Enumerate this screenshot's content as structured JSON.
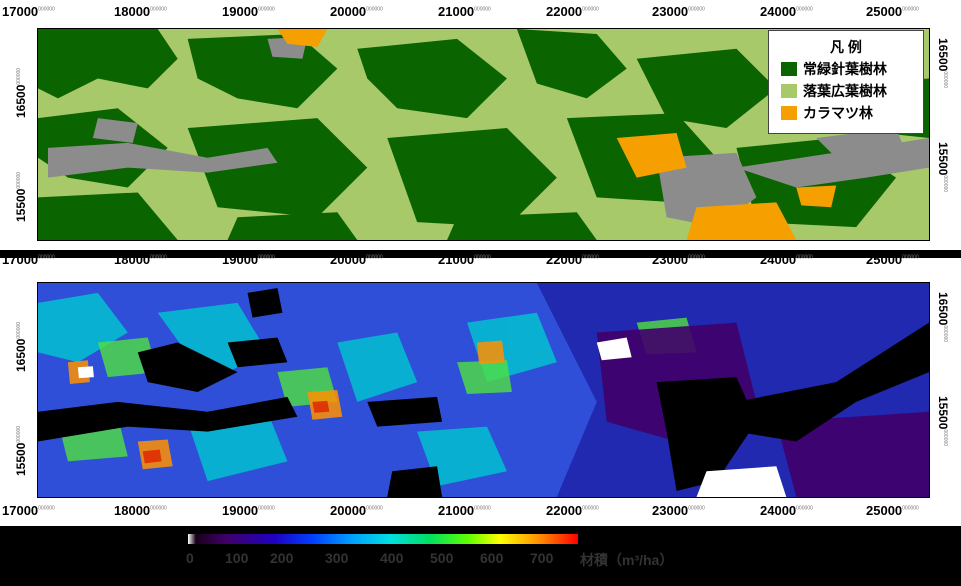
{
  "x_ticks": [
    "17000",
    "18000",
    "19000",
    "20000",
    "21000",
    "22000",
    "23000",
    "24000",
    "25000"
  ],
  "x_tick_suffix": "000000",
  "y_ticks": [
    "16500",
    "15500"
  ],
  "legend": {
    "title": "凡 例",
    "items": [
      {
        "label": "常緑針葉樹林",
        "color": "#0a6400"
      },
      {
        "label": "落葉広葉樹林",
        "color": "#a8c96a"
      },
      {
        "label": "カラマツ林",
        "color": "#f5a000"
      }
    ]
  },
  "colorbar": {
    "ticks": [
      "0",
      "100",
      "200",
      "300",
      "400",
      "500",
      "600",
      "700"
    ],
    "label": "材積（m³/ha）"
  },
  "colors": {
    "nodata": "#8c8c8c",
    "evergreen": "#0a6400",
    "deciduous": "#a8c96a",
    "larch": "#f5a000"
  }
}
